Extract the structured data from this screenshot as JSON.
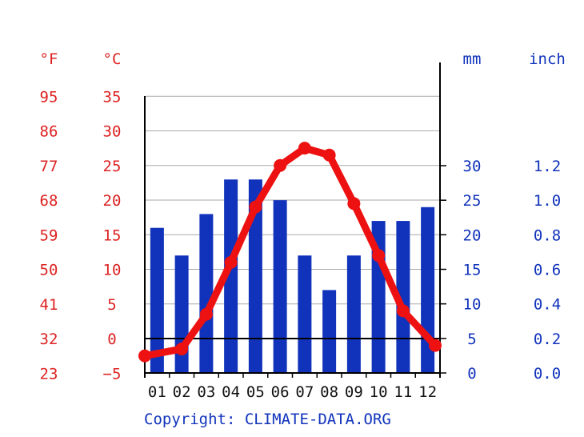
{
  "chart_data": {
    "type": "bar+line",
    "categories": [
      "01",
      "02",
      "03",
      "04",
      "05",
      "06",
      "07",
      "08",
      "09",
      "10",
      "11",
      "12"
    ],
    "series": [
      {
        "axis": "precipitation",
        "unit": "mm",
        "color": "#1133bb",
        "values": [
          21,
          17,
          23,
          28,
          28,
          25,
          17,
          12,
          17,
          22,
          22,
          24
        ]
      },
      {
        "axis": "temperature",
        "unit": "°C",
        "color": "#ee1111",
        "values": [
          -2.5,
          -1.5,
          3.5,
          11,
          19,
          25,
          27.5,
          26.5,
          19.5,
          12,
          4,
          -1
        ]
      }
    ],
    "axes": {
      "fahrenheit": {
        "label": "°F",
        "ticks": [
          "95",
          "86",
          "77",
          "68",
          "59",
          "50",
          "41",
          "32",
          "23"
        ]
      },
      "celsius": {
        "label": "°C",
        "ticks": [
          "35",
          "30",
          "25",
          "20",
          "15",
          "10",
          "5",
          "0",
          "−5"
        ],
        "ylim": [
          -5,
          35
        ]
      },
      "mm": {
        "label": "mm",
        "ticks": [
          "30",
          "25",
          "20",
          "15",
          "10",
          "5",
          "0"
        ],
        "ylim": [
          0,
          30
        ]
      },
      "inch": {
        "label": "inch",
        "ticks": [
          "1.2",
          "1.0",
          "0.8",
          "0.6",
          "0.4",
          "0.2",
          "0.0"
        ]
      }
    },
    "grid": true,
    "copyright": "Copyright: CLIMATE-DATA.ORG"
  }
}
